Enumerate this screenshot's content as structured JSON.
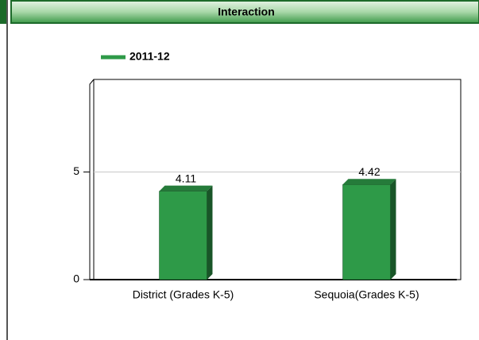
{
  "chart_data": {
    "type": "bar",
    "title": "Interaction",
    "categories": [
      "District (Grades K-5)",
      "Sequoia(Grades K-5)"
    ],
    "series": [
      {
        "name": "2011-12",
        "color": "#2e9a48",
        "values": [
          4.11,
          4.42
        ]
      }
    ],
    "ylim": [
      0,
      9.3
    ],
    "yticks": [
      0,
      5
    ],
    "grid": true
  }
}
